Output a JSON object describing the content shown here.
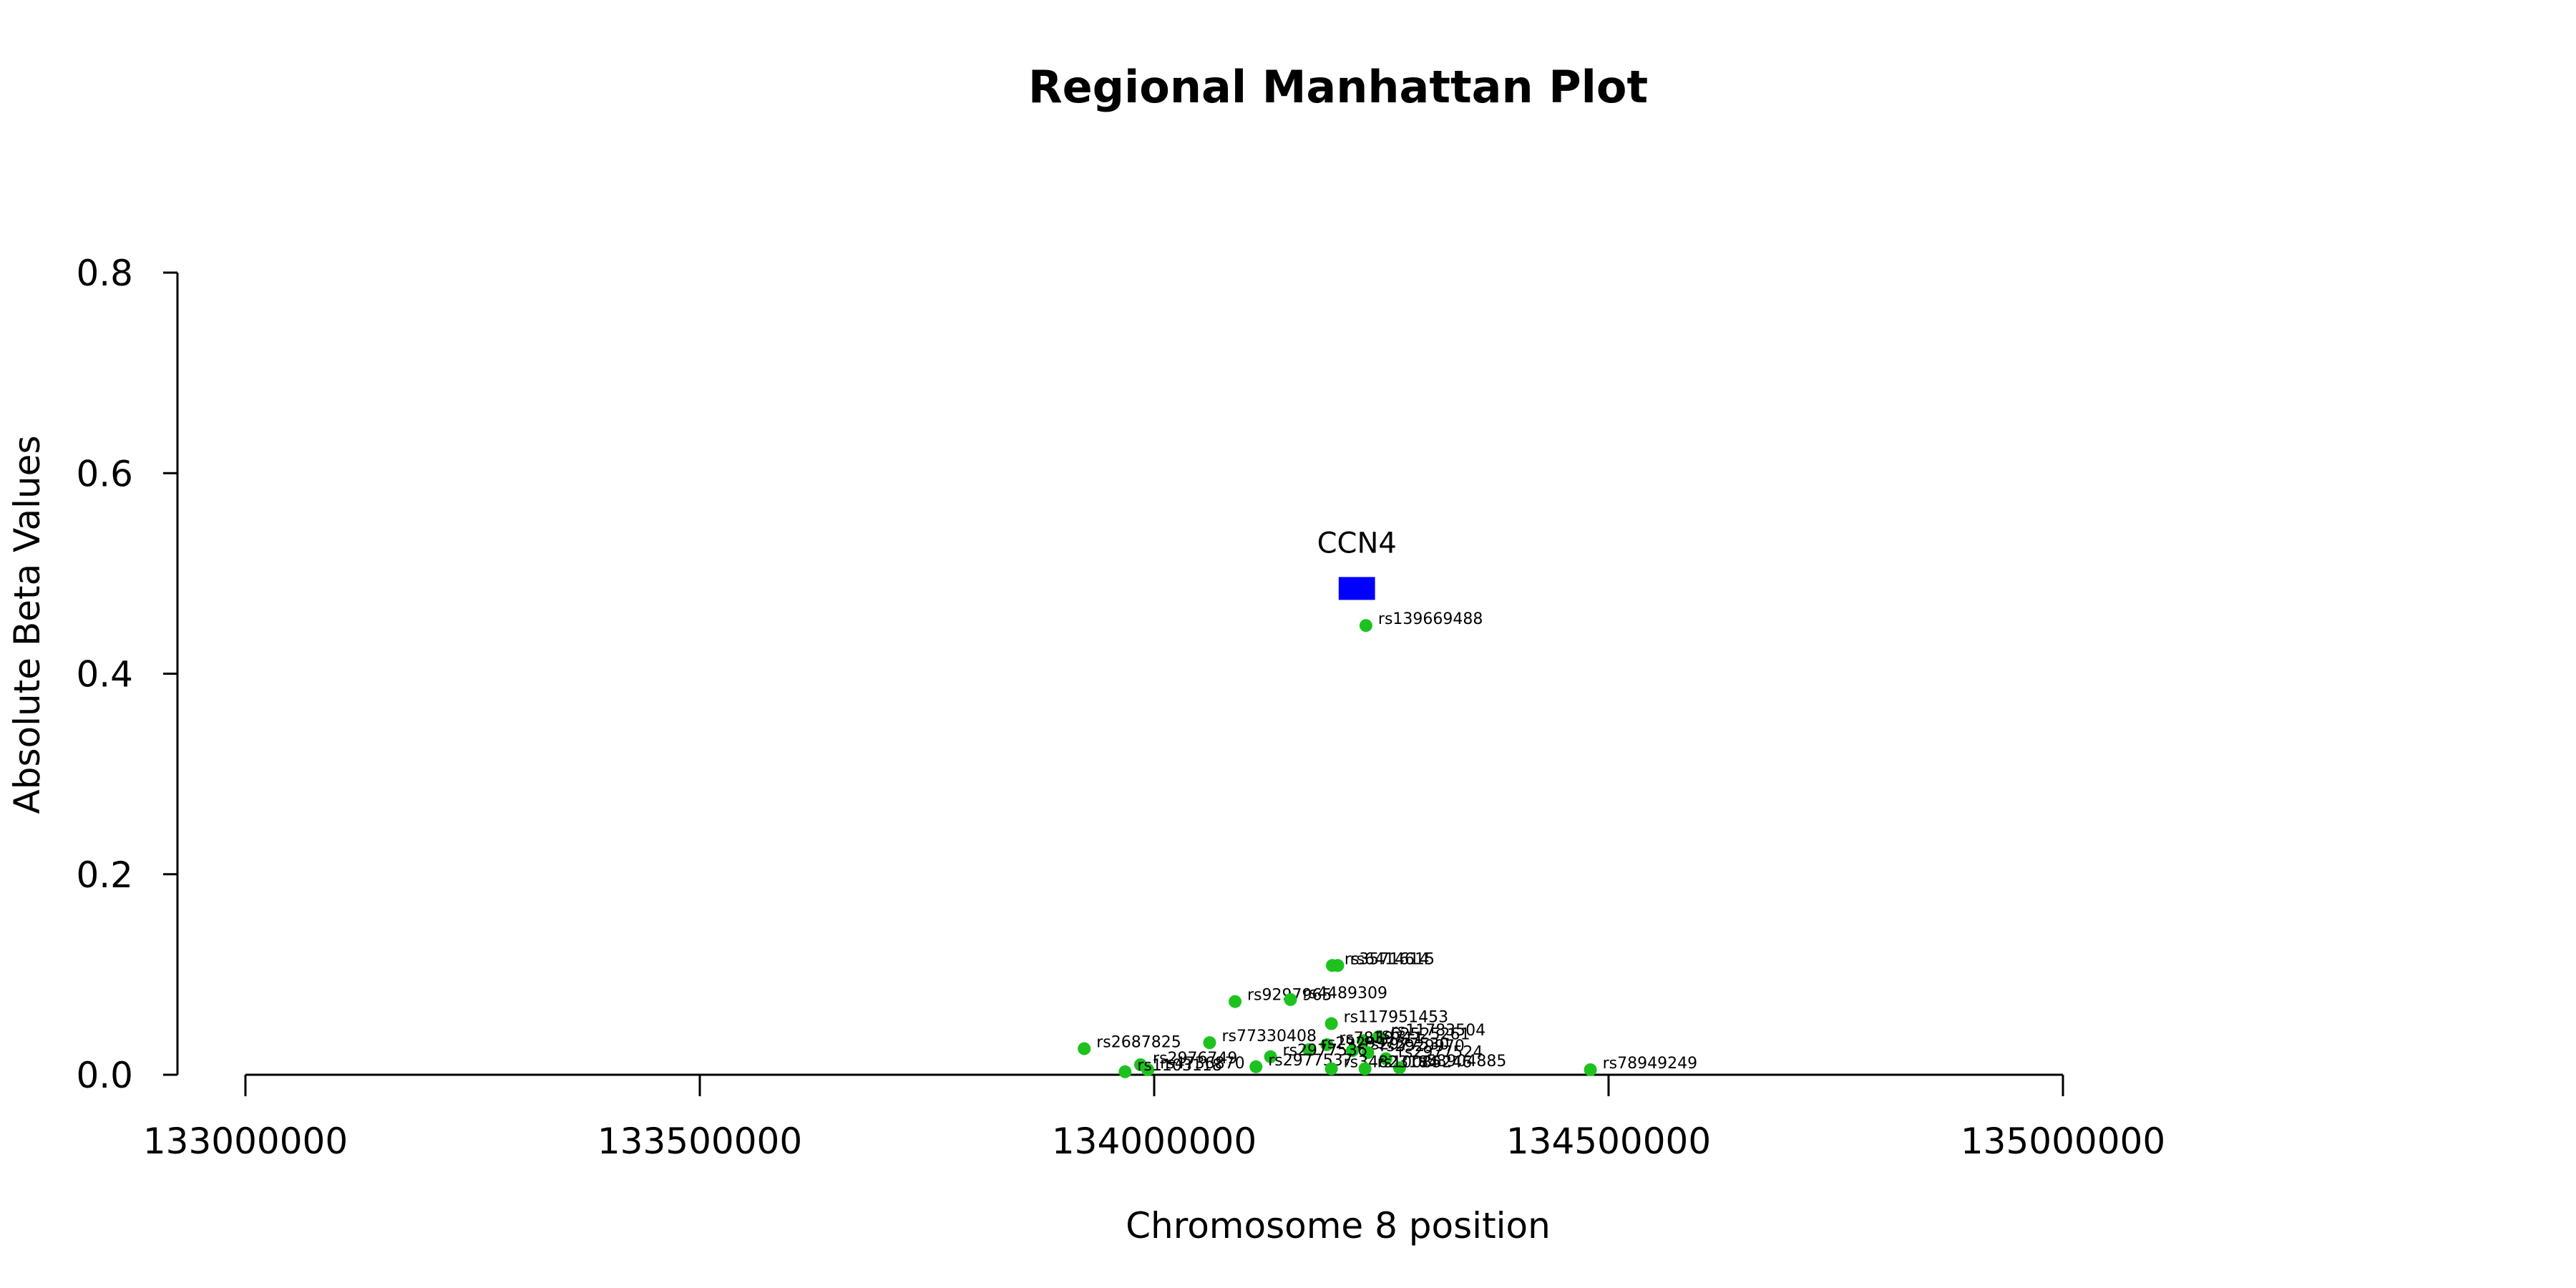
{
  "chart_data": {
    "type": "scatter",
    "title": "Regional Manhattan Plot",
    "xlabel": "Chromosome 8 position",
    "ylabel": "Absolute Beta Values",
    "xlim": [
      133000000,
      135000000
    ],
    "ylim": [
      0,
      0.8
    ],
    "x_ticks": [
      133000000,
      133500000,
      134000000,
      134500000,
      135000000
    ],
    "x_tick_labels": [
      "133000000",
      "133500000",
      "134000000",
      "134500000",
      "135000000"
    ],
    "y_ticks": [
      0.0,
      0.2,
      0.4,
      0.6,
      0.8
    ],
    "y_tick_labels": [
      "0.0",
      "0.2",
      "0.4",
      "0.6",
      "0.8"
    ],
    "grid": false,
    "point_color": "#1ec21e",
    "gene_color": "#0000ff",
    "genes": [
      {
        "name": "CCN4",
        "start": 134203000,
        "end": 134243000,
        "y": 0.485
      }
    ],
    "points": [
      {
        "x": 134233000,
        "y": 0.448,
        "label": "rs139669488"
      },
      {
        "x": 134196000,
        "y": 0.109,
        "label": "rs3571614"
      },
      {
        "x": 134202000,
        "y": 0.109,
        "label": "rs6414615"
      },
      {
        "x": 134089000,
        "y": 0.073,
        "label": "rs9297965"
      },
      {
        "x": 134150000,
        "y": 0.075,
        "label": "rs4489309"
      },
      {
        "x": 134195000,
        "y": 0.051,
        "label": "rs117951453"
      },
      {
        "x": 134247000,
        "y": 0.038,
        "label": "rs11783504"
      },
      {
        "x": 134230000,
        "y": 0.034,
        "label": "rs62525261"
      },
      {
        "x": 134190000,
        "y": 0.03,
        "label": "rs7839711"
      },
      {
        "x": 134061000,
        "y": 0.032,
        "label": "rs77330408"
      },
      {
        "x": 133923000,
        "y": 0.026,
        "label": "rs2687825"
      },
      {
        "x": 134170000,
        "y": 0.025,
        "label": "rs2929973"
      },
      {
        "x": 134218000,
        "y": 0.024,
        "label": "rs2977530"
      },
      {
        "x": 134235000,
        "y": 0.022,
        "label": "rs2929970"
      },
      {
        "x": 134128000,
        "y": 0.018,
        "label": "rs2977536"
      },
      {
        "x": 134255000,
        "y": 0.016,
        "label": "rs2977524"
      },
      {
        "x": 133985000,
        "y": 0.01,
        "label": "rs2976749"
      },
      {
        "x": 134112000,
        "y": 0.008,
        "label": "rs2977537"
      },
      {
        "x": 134270000,
        "y": 0.007,
        "label": "rs58904885"
      },
      {
        "x": 134195000,
        "y": 0.006,
        "label": "rs34823184"
      },
      {
        "x": 134232000,
        "y": 0.006,
        "label": "rs10085246"
      },
      {
        "x": 133993000,
        "y": 0.005,
        "label": "rs4736870"
      },
      {
        "x": 133968000,
        "y": 0.003,
        "label": "rs1103118"
      },
      {
        "x": 134480000,
        "y": 0.005,
        "label": "rs78949249"
      }
    ]
  }
}
